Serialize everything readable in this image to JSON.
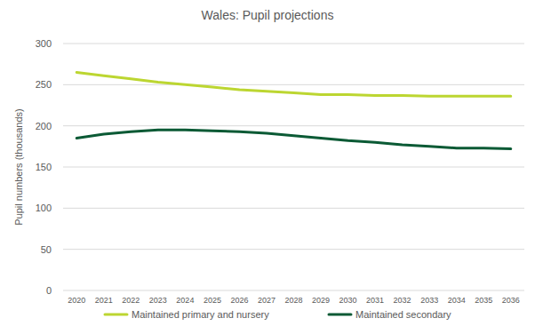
{
  "chart_data": {
    "type": "line",
    "title": "Wales: Pupil projections",
    "y_label": "Pupil numbers (thousands)",
    "categories": [
      "2020",
      "2021",
      "2022",
      "2023",
      "2024",
      "2025",
      "2026",
      "2027",
      "2028",
      "2029",
      "2030",
      "2031",
      "2032",
      "2033",
      "2034",
      "2035",
      "2036"
    ],
    "series": [
      {
        "name": "Maintained primary and nursery",
        "color": "#bcd631",
        "values": [
          265,
          261,
          257,
          253,
          250,
          247,
          244,
          242,
          240,
          238,
          238,
          237,
          237,
          236,
          236,
          236,
          236
        ]
      },
      {
        "name": "Maintained secondary",
        "color": "#0b5a35",
        "values": [
          185,
          190,
          193,
          195,
          195,
          194,
          193,
          191,
          188,
          185,
          182,
          180,
          177,
          175,
          173,
          173,
          172
        ]
      }
    ],
    "ylim": [
      0,
      300
    ],
    "yticks": [
      0,
      50,
      100,
      150,
      200,
      250,
      300
    ],
    "grid": true,
    "legend": "bottom"
  }
}
